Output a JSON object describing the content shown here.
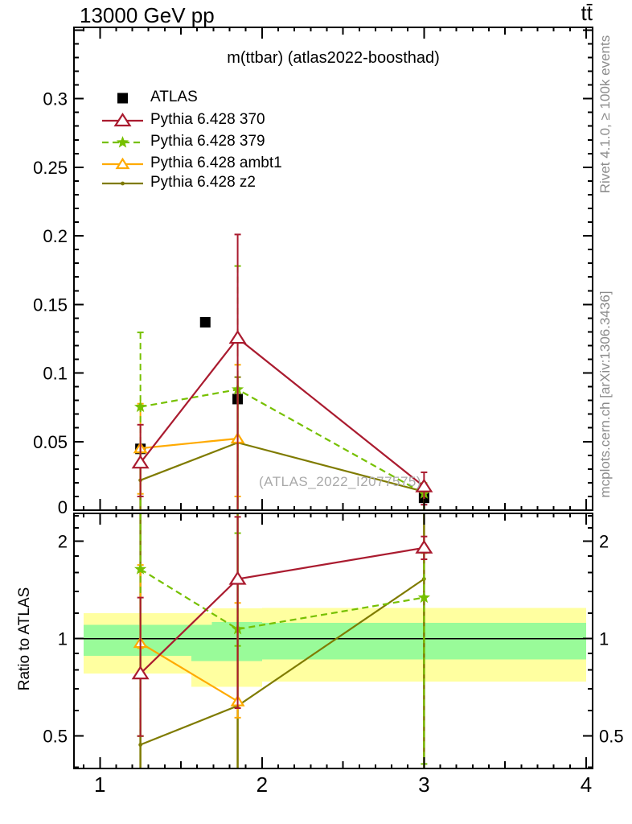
{
  "header": {
    "left_title": "13000 GeV pp",
    "right_title": "tt̄"
  },
  "panel_title": "m(ttbar) (atlas2022-boosthad)",
  "watermark": "(ATLAS_2022_I2077575)",
  "right_captions": {
    "top": "Rivet 4.1.0, ≥ 100k events",
    "bottom": "mcplots.cern.ch [arXiv:1306.3436]"
  },
  "ratio_panel": {
    "ylabel": "Ratio to ATLAS"
  },
  "colors": {
    "atlas": "#000000",
    "p370": "#aa1b2f",
    "p379": "#76c000",
    "ambt1": "#ffaa00",
    "z2": "#7f7b00",
    "band_yellow": "#ffffa0",
    "band_green": "#99fb99",
    "caption_gray": "#8c8c8c",
    "watermark_gray": "#a9a9a9",
    "axis": "#000000"
  },
  "legend": [
    {
      "label": "ATLAS",
      "key": "atlas",
      "marker": "square",
      "line": "none"
    },
    {
      "label": "Pythia 6.428 370",
      "key": "p370",
      "marker": "triangle",
      "line": "solid"
    },
    {
      "label": "Pythia 6.428 379",
      "key": "p379",
      "marker": "star",
      "line": "dashed"
    },
    {
      "label": "Pythia 6.428 ambt1",
      "key": "ambt1",
      "marker": "triangle",
      "line": "solid"
    },
    {
      "label": "Pythia 6.428 z2",
      "key": "z2",
      "marker": "dot",
      "line": "solid"
    }
  ],
  "chart_data": [
    {
      "type": "scatter",
      "panel": "main",
      "title": "m(ttbar) (atlas2022-boosthad)",
      "xlim": [
        0.84,
        4.04
      ],
      "ylim": [
        0,
        0.352
      ],
      "grid": false,
      "xticks": [
        {
          "v": 1,
          "label": "1"
        },
        {
          "v": 2,
          "label": "2"
        },
        {
          "v": 3,
          "label": "3"
        },
        {
          "v": 4,
          "label": "4"
        }
      ],
      "x_medium_ticks": [
        1.5,
        2.5,
        3.5
      ],
      "x_minor_step": 0.1,
      "yticks": [
        {
          "v": 0,
          "label": "0"
        },
        {
          "v": 0.05,
          "label": "0.05"
        },
        {
          "v": 0.1,
          "label": "0.1"
        },
        {
          "v": 0.15,
          "label": "0.15"
        },
        {
          "v": 0.2,
          "label": "0.2"
        },
        {
          "v": 0.25,
          "label": "0.25"
        },
        {
          "v": 0.3,
          "label": "0.3"
        }
      ],
      "y_extra_majors": [
        0.35
      ],
      "y_minor_step": 0.01,
      "series": [
        {
          "name": "ATLAS",
          "key": "atlas",
          "x": [
            1.25,
            1.65,
            1.85,
            3.0
          ],
          "y": [
            0.0447,
            0.137,
            0.081,
            0.009
          ]
        },
        {
          "name": "Pythia 6.428 z2",
          "key": "z2",
          "x": [
            1.25,
            1.85,
            3.0
          ],
          "y": [
            0.0218,
            0.0492,
            0.0135
          ],
          "yerr": [
            [
              0,
              0.045
            ],
            [
              0,
              0.097
            ],
            [
              0,
              0.0185
            ]
          ]
        },
        {
          "name": "Pythia 6.428 ambt1",
          "key": "ambt1",
          "x": [
            1.25,
            1.85
          ],
          "y": [
            0.0451,
            0.0522
          ],
          "yerr": [
            [
              0.0119,
              0.0776
            ],
            [
              0.01,
              0.106
            ]
          ]
        },
        {
          "name": "Pythia 6.428 379",
          "key": "p379",
          "x": [
            1.25,
            1.85,
            3.0
          ],
          "y": [
            0.0753,
            0.088,
            0.0121
          ],
          "yerr": [
            [
              0,
              0.1296
            ],
            [
              0,
              0.178
            ],
            [
              0,
              0.0198
            ]
          ]
        },
        {
          "name": "Pythia 6.428 370",
          "key": "p370",
          "x": [
            1.25,
            1.85,
            3.0
          ],
          "y": [
            0.0345,
            0.1255,
            0.0172
          ],
          "yerr": [
            [
              0.01,
              0.0623
            ],
            [
              0,
              0.201
            ],
            [
              0.004,
              0.0276
            ]
          ]
        }
      ]
    },
    {
      "type": "ratio",
      "panel": "ratio",
      "ylabel": "Ratio to ATLAS",
      "yscale": "log",
      "xlim": [
        0.84,
        4.04
      ],
      "ylim": [
        0.397,
        2.44
      ],
      "xticks": [
        {
          "v": 1,
          "label": "1"
        },
        {
          "v": 2,
          "label": "2"
        },
        {
          "v": 3,
          "label": "3"
        },
        {
          "v": 4,
          "label": "4"
        }
      ],
      "x_medium_ticks": [
        1.5,
        2.5,
        3.5
      ],
      "x_minor_step": 0.1,
      "yticks": [
        {
          "v": 0.5,
          "label": "0.5"
        },
        {
          "v": 1,
          "label": "1"
        },
        {
          "v": 2,
          "label": "2"
        }
      ],
      "y_minor_ticks": [
        0.4,
        0.6,
        0.7,
        0.8,
        0.9,
        1.2,
        1.4,
        1.6,
        1.8,
        2.2,
        2.4
      ],
      "ref_line": 1.0,
      "bands": [
        {
          "x": [
            0.9,
            1.565
          ],
          "yellow": [
            0.78,
            1.2
          ],
          "green": [
            0.885,
            1.105
          ]
        },
        {
          "x": [
            1.565,
            1.69
          ],
          "yellow": [
            0.71,
            1.2
          ],
          "green": [
            0.853,
            1.105
          ]
        },
        {
          "x": [
            1.69,
            2.0
          ],
          "yellow": [
            0.71,
            1.24
          ],
          "green": [
            0.853,
            1.125
          ]
        },
        {
          "x": [
            2.0,
            4.0
          ],
          "yellow": [
            0.737,
            1.245
          ],
          "green": [
            0.862,
            1.12
          ]
        }
      ],
      "series": [
        {
          "name": "Pythia 6.428 z2",
          "key": "z2",
          "x": [
            1.25,
            1.85,
            3.0
          ],
          "y": [
            0.47,
            0.62,
            1.53
          ],
          "yerr": [
            [
              0.05,
              30
            ],
            [
              0.05,
              30
            ],
            [
              0.05,
              30
            ]
          ]
        },
        {
          "name": "Pythia 6.428 ambt1",
          "key": "ambt1",
          "x": [
            1.25,
            1.85
          ],
          "y": [
            0.97,
            0.64
          ],
          "yerr": [
            [
              0.935,
              1.69
            ],
            [
              0.57,
              1.29
            ]
          ]
        },
        {
          "name": "Pythia 6.428 379",
          "key": "p379",
          "x": [
            1.25,
            1.85,
            3.0
          ],
          "y": [
            1.64,
            1.07,
            1.34
          ],
          "yerr": [
            [
              0.5,
              2.6
            ],
            [
              0.95,
              2.12
            ],
            [
              0.41,
              1.84
            ]
          ]
        },
        {
          "name": "Pythia 6.428 370",
          "key": "p370",
          "x": [
            1.25,
            1.85,
            3.0
          ],
          "y": [
            0.78,
            1.53,
            1.91
          ],
          "yerr": [
            [
              0.5,
              1.34
            ],
            [
              0.61,
              2.38
            ],
            [
              1.76,
              2.07
            ]
          ]
        }
      ]
    }
  ]
}
